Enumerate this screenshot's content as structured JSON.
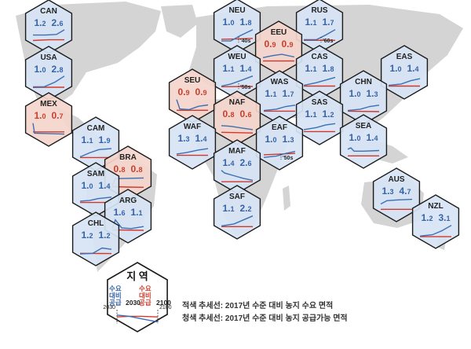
{
  "regions": [
    {
      "code": "CAN",
      "demand": "1.2",
      "supply": "2.6",
      "status": "surplus",
      "tag": ""
    },
    {
      "code": "USA",
      "demand": "1.0",
      "supply": "2.8",
      "status": "surplus",
      "tag": ""
    },
    {
      "code": "MEX",
      "demand": "1.0",
      "supply": "0.7",
      "status": "deficit",
      "tag": ""
    },
    {
      "code": "CAM",
      "demand": "1.1",
      "supply": "1.9",
      "status": "surplus",
      "tag": ""
    },
    {
      "code": "BRA",
      "demand": "0.8",
      "supply": "0.8",
      "status": "deficit",
      "tag": ""
    },
    {
      "code": "SAM",
      "demand": "1.0",
      "supply": "1.4",
      "status": "surplus",
      "tag": ""
    },
    {
      "code": "ARG",
      "demand": "1.6",
      "supply": "1.1",
      "status": "surplus",
      "tag": ""
    },
    {
      "code": "CHL",
      "demand": "1.2",
      "supply": "1.2",
      "status": "surplus",
      "tag": ""
    },
    {
      "code": "NEU",
      "demand": "1.0",
      "supply": "1.8",
      "status": "surplus",
      "tag": "'40s"
    },
    {
      "code": "RUS",
      "demand": "1.1",
      "supply": "1.7",
      "status": "surplus",
      "tag": "'60s"
    },
    {
      "code": "EEU",
      "demand": "0.9",
      "supply": "0.9",
      "status": "deficit",
      "tag": ""
    },
    {
      "code": "WEU",
      "demand": "1.1",
      "supply": "1.4",
      "status": "surplus",
      "tag": "'50s"
    },
    {
      "code": "CAS",
      "demand": "1.1",
      "supply": "1.8",
      "status": "surplus",
      "tag": ""
    },
    {
      "code": "EAS",
      "demand": "1.0",
      "supply": "1.4",
      "status": "surplus",
      "tag": ""
    },
    {
      "code": "SEU",
      "demand": "0.9",
      "supply": "0.9",
      "status": "deficit",
      "tag": ""
    },
    {
      "code": "WAS",
      "demand": "1.1",
      "supply": "1.7",
      "status": "surplus",
      "tag": ""
    },
    {
      "code": "CHN",
      "demand": "1.0",
      "supply": "1.3",
      "status": "surplus",
      "tag": ""
    },
    {
      "code": "NAF",
      "demand": "0.8",
      "supply": "0.6",
      "status": "deficit",
      "tag": ""
    },
    {
      "code": "SAS",
      "demand": "1.1",
      "supply": "1.2",
      "status": "surplus",
      "tag": ""
    },
    {
      "code": "WAF",
      "demand": "1.3",
      "supply": "1.4",
      "status": "surplus",
      "tag": ""
    },
    {
      "code": "EAF",
      "demand": "1.0",
      "supply": "1.3",
      "status": "surplus",
      "tag": "'50s"
    },
    {
      "code": "SEA",
      "demand": "1.0",
      "supply": "1.4",
      "status": "surplus",
      "tag": ""
    },
    {
      "code": "MAF",
      "demand": "1.4",
      "supply": "2.6",
      "status": "surplus",
      "tag": ""
    },
    {
      "code": "SAF",
      "demand": "1.1",
      "supply": "2.2",
      "status": "surplus",
      "tag": ""
    },
    {
      "code": "AUS",
      "demand": "1.3",
      "supply": "4.7",
      "status": "surplus",
      "tag": ""
    },
    {
      "code": "NZL",
      "demand": "1.2",
      "supply": "3.1",
      "status": "surplus",
      "tag": ""
    }
  ],
  "legend": {
    "title": "지 역",
    "demand_label": "수요\n대비\n공급",
    "demand_year": "2030",
    "supply_label": "수요\n대비\n공급",
    "supply_year": "2100",
    "axis_start": "2030",
    "axis_end": "2100",
    "red_line": "적색 추세선: 2017년 수준 대비 농지 수요 면적",
    "blue_line": "청색 추세선: 2017년 수준 대비 농지 공급가능 면적"
  },
  "colors": {
    "surplus_fill": "#d7e4f4",
    "deficit_fill": "#f4d5cb",
    "blue_text": "#3563a8",
    "red_text": "#cc3d2c",
    "blue_line": "#3a6fb5",
    "red_line": "#d2382a",
    "map_land": "#d4d4d4"
  }
}
